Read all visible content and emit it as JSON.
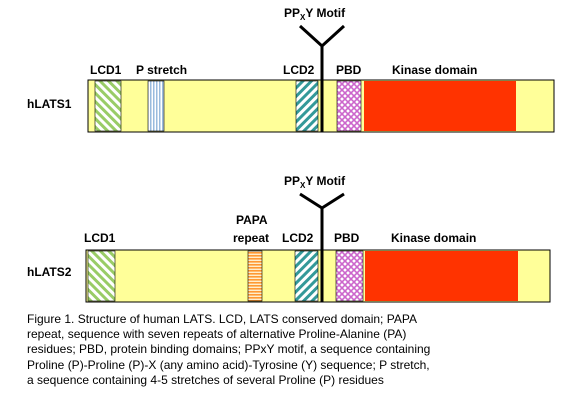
{
  "colors": {
    "background": "#FFFF99",
    "kinase": "#FF3300",
    "lcd1": "#99CC66",
    "lcd2": "#339999",
    "pbd": "#CC66CC",
    "p_stretch": "#99BBDD",
    "papa": "#FF9933"
  },
  "motif": {
    "prefix": "PP",
    "sub": "X",
    "suffix": "Y Motif"
  },
  "proteins": [
    {
      "name": "hLATS1",
      "labels": {
        "lcd1": "LCD1",
        "p_stretch": "P stretch",
        "lcd2": "LCD2",
        "pbd": "PBD",
        "kinase": "Kinase domain"
      }
    },
    {
      "name": "hLATS2",
      "labels": {
        "lcd1": "LCD1",
        "papa_line1": "PAPA",
        "papa_line2": "repeat",
        "lcd2": "LCD2",
        "pbd": "PBD",
        "kinase": "Kinase domain"
      }
    }
  ],
  "caption": [
    "Figure 1.  Structure of human LATS. LCD, LATS conserved domain; PAPA",
    "repeat, sequence with seven repeats of alternative Proline-Alanine (PA)",
    "residues; PBD, protein binding domains; PPxY motif, a sequence containing",
    "Proline (P)-Proline (P)-X (any amino acid)-Tyrosine (Y) sequence; P stretch,",
    "a sequence containing 4-5 stretches of several Proline (P) residues"
  ]
}
